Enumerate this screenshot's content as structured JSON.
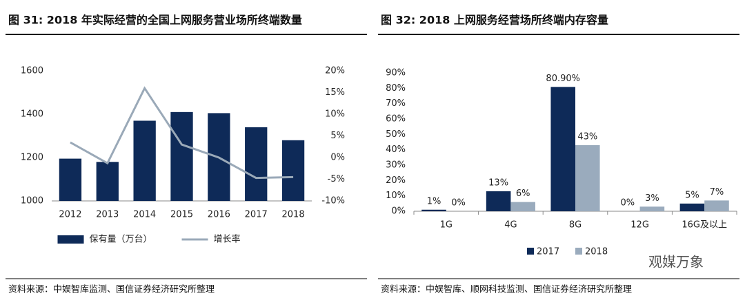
{
  "chart_data": [
    {
      "type": "combo",
      "title": "图 31: 2018 年实际经营的全国上网服务营业场所终端数量",
      "categories": [
        "2012",
        "2013",
        "2014",
        "2015",
        "2016",
        "2017",
        "2018"
      ],
      "series": [
        {
          "name": "保有量（万台）",
          "type": "bar",
          "color": "#0e2a58",
          "values": [
            1195,
            1180,
            1370,
            1410,
            1405,
            1340,
            1280
          ]
        },
        {
          "name": "增长率",
          "type": "line",
          "axis": "y2",
          "color": "#9aa9b8",
          "values": [
            3.5,
            -1.3,
            16,
            3,
            0,
            -4.7,
            -4.5
          ]
        }
      ],
      "ylim": [
        1000,
        1600
      ],
      "yticks": [
        1000,
        1200,
        1400,
        1600
      ],
      "y2lim": [
        -10,
        20
      ],
      "y2ticks": [
        {
          "value": -10,
          "label": "-10%"
        },
        {
          "value": -5,
          "label": "-5%"
        },
        {
          "value": 0,
          "label": "0%"
        },
        {
          "value": 5,
          "label": "5%"
        },
        {
          "value": 10,
          "label": "10%"
        },
        {
          "value": 15,
          "label": "15%"
        },
        {
          "value": 20,
          "label": "20%"
        }
      ],
      "legend": "bottom",
      "source": "资料来源：中娱智库监测、国信证券经济研究所整理"
    },
    {
      "type": "bar",
      "title": "图 32:  2018 上网服务经营场所终端内存容量",
      "categories": [
        "1G",
        "4G",
        "8G",
        "12G",
        "16G及以上"
      ],
      "series": [
        {
          "name": "2017",
          "color": "#0e2a58",
          "values": [
            1,
            13,
            80.9,
            0,
            5
          ],
          "value_labels": [
            "1%",
            "13%",
            "80.90%",
            "0%",
            "5%"
          ]
        },
        {
          "name": "2018",
          "color": "#9aabbd",
          "values": [
            0,
            6,
            43,
            3,
            7
          ],
          "value_labels": [
            "0%",
            "6%",
            "43%",
            "3%",
            "7%"
          ]
        }
      ],
      "ylim": [
        0,
        90
      ],
      "yticks": [
        {
          "value": 0,
          "label": "0%"
        },
        {
          "value": 10,
          "label": "10%"
        },
        {
          "value": 20,
          "label": "20%"
        },
        {
          "value": 30,
          "label": "30%"
        },
        {
          "value": 40,
          "label": "40%"
        },
        {
          "value": 50,
          "label": "50%"
        },
        {
          "value": 60,
          "label": "60%"
        },
        {
          "value": 70,
          "label": "70%"
        },
        {
          "value": 80,
          "label": "80%"
        },
        {
          "value": 90,
          "label": "90%"
        }
      ],
      "legend": "bottom",
      "source": "资料来源：中娱智库、顺网科技监测、国信证券经济研究所整理"
    }
  ],
  "watermark": "观媒万象"
}
